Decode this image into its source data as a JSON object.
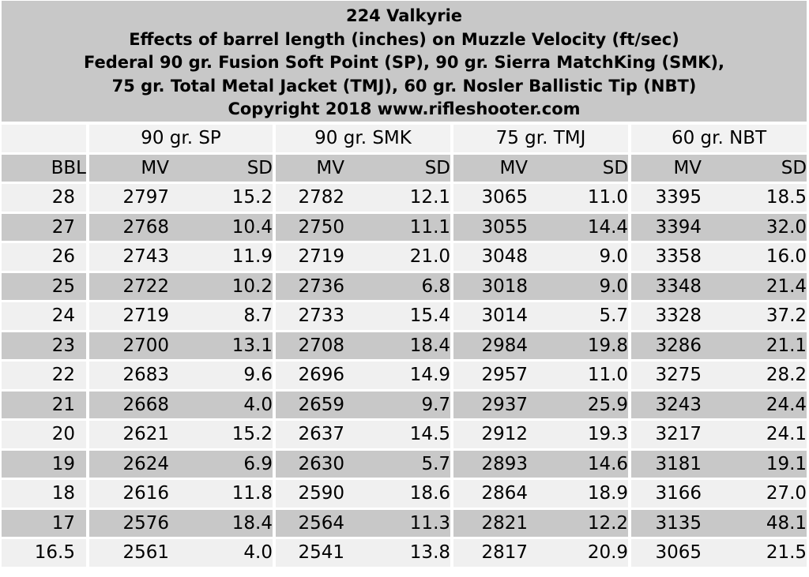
{
  "chart_data": {
    "type": "table",
    "title_lines": [
      "224 Valkyrie",
      "Effects of barrel length (inches) on Muzzle Velocity (ft/sec)",
      "Federal 90 gr. Fusion Soft Point (SP), 90 gr. Sierra MatchKing (SMK),",
      "75 gr. Total Metal Jacket (TMJ), 60 gr. Nosler Ballistic Tip (NBT)",
      "Copyright 2018 www.rifleshooter.com"
    ],
    "bullet_headers": [
      "90 gr. SP",
      "90 gr. SMK",
      "75 gr. TMJ",
      "60 gr. NBT"
    ],
    "column_headers": [
      "BBL",
      "MV",
      "SD",
      "MV",
      "SD",
      "MV",
      "SD",
      "MV",
      "SD"
    ],
    "rows": [
      [
        "28",
        "2797",
        "15.2",
        "2782",
        "12.1",
        "3065",
        "11.0",
        "3395",
        "18.5"
      ],
      [
        "27",
        "2768",
        "10.4",
        "2750",
        "11.1",
        "3055",
        "14.4",
        "3394",
        "32.0"
      ],
      [
        "26",
        "2743",
        "11.9",
        "2719",
        "21.0",
        "3048",
        "9.0",
        "3358",
        "16.0"
      ],
      [
        "25",
        "2722",
        "10.2",
        "2736",
        "6.8",
        "3018",
        "9.0",
        "3348",
        "21.4"
      ],
      [
        "24",
        "2719",
        "8.7",
        "2733",
        "15.4",
        "3014",
        "5.7",
        "3328",
        "37.2"
      ],
      [
        "23",
        "2700",
        "13.1",
        "2708",
        "18.4",
        "2984",
        "19.8",
        "3286",
        "21.1"
      ],
      [
        "22",
        "2683",
        "9.6",
        "2696",
        "14.9",
        "2957",
        "11.0",
        "3275",
        "28.2"
      ],
      [
        "21",
        "2668",
        "4.0",
        "2659",
        "9.7",
        "2937",
        "25.9",
        "3243",
        "24.4"
      ],
      [
        "20",
        "2621",
        "15.2",
        "2637",
        "14.5",
        "2912",
        "19.3",
        "3217",
        "24.1"
      ],
      [
        "19",
        "2624",
        "6.9",
        "2630",
        "5.7",
        "2893",
        "14.6",
        "3181",
        "19.1"
      ],
      [
        "18",
        "2616",
        "11.8",
        "2590",
        "18.6",
        "2864",
        "18.9",
        "3166",
        "27.0"
      ],
      [
        "17",
        "2576",
        "18.4",
        "2564",
        "11.3",
        "2821",
        "12.2",
        "3135",
        "48.1"
      ],
      [
        "16.5",
        "2561",
        "4.0",
        "2541",
        "13.8",
        "2817",
        "20.9",
        "3065",
        "21.5"
      ]
    ]
  },
  "colors": {
    "header_shade": "#c8c8c8",
    "light_shade": "#f0f0f0",
    "background": "#ffffff"
  }
}
